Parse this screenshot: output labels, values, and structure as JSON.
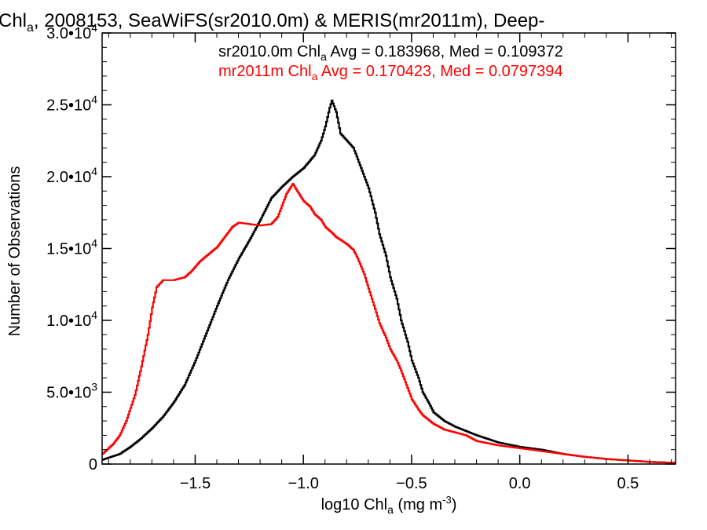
{
  "chart_data": {
    "type": "line",
    "title": {
      "prefix": "Chl",
      "prefix_sub": "a",
      "rest": ", 2008153, SeaWiFS(sr2010.0m) & MERIS(mr2011m), Deep-"
    },
    "xlabel": {
      "prefix": "log10 Chl",
      "sub": "a",
      "mid": " (mg m",
      "sup": "-3",
      "suffix": ")"
    },
    "ylabel": "Number of Observations",
    "xlim": [
      -1.93,
      0.72
    ],
    "ylim": [
      0,
      30000
    ],
    "x_ticks": [
      {
        "value": -1.5,
        "label": "−1.5"
      },
      {
        "value": -1.0,
        "label": "−1.0"
      },
      {
        "value": -0.5,
        "label": "−0.5"
      },
      {
        "value": 0.0,
        "label": "0.0"
      },
      {
        "value": 0.5,
        "label": "0.5"
      }
    ],
    "y_ticks": [
      {
        "value": 0,
        "label": "0",
        "exp": ""
      },
      {
        "value": 5000,
        "label": "5.0•10",
        "exp": "3"
      },
      {
        "value": 10000,
        "label": "1.0•10",
        "exp": "4"
      },
      {
        "value": 15000,
        "label": "1.5•10",
        "exp": "4"
      },
      {
        "value": 20000,
        "label": "2.0•10",
        "exp": "4"
      },
      {
        "value": 25000,
        "label": "2.5•10",
        "exp": "4"
      },
      {
        "value": 30000,
        "label": "3.0•10",
        "exp": "4"
      }
    ],
    "legend": [
      {
        "prefix": "sr2010.0m Chl",
        "sub": "a",
        "text": " Avg = 0.183968, Med = 0.109372",
        "color": "#000000"
      },
      {
        "prefix": "mr2011m Chl",
        "sub": "a",
        "text": " Avg = 0.170423, Med = 0.0797394",
        "color": "#ff0000"
      }
    ],
    "series": [
      {
        "name": "sr2010.0m",
        "color": "#000000",
        "points": [
          [
            -1.93,
            300
          ],
          [
            -1.85,
            700
          ],
          [
            -1.8,
            1200
          ],
          [
            -1.75,
            1800
          ],
          [
            -1.7,
            2500
          ],
          [
            -1.65,
            3300
          ],
          [
            -1.6,
            4300
          ],
          [
            -1.55,
            5500
          ],
          [
            -1.5,
            7200
          ],
          [
            -1.45,
            9100
          ],
          [
            -1.4,
            11000
          ],
          [
            -1.35,
            12800
          ],
          [
            -1.3,
            14300
          ],
          [
            -1.25,
            15600
          ],
          [
            -1.2,
            17000
          ],
          [
            -1.15,
            18500
          ],
          [
            -1.1,
            19300
          ],
          [
            -1.05,
            20000
          ],
          [
            -1.0,
            20600
          ],
          [
            -0.95,
            21500
          ],
          [
            -0.92,
            22500
          ],
          [
            -0.9,
            23500
          ],
          [
            -0.88,
            24800
          ],
          [
            -0.87,
            25300
          ],
          [
            -0.85,
            24500
          ],
          [
            -0.83,
            23000
          ],
          [
            -0.8,
            22500
          ],
          [
            -0.77,
            22000
          ],
          [
            -0.75,
            21200
          ],
          [
            -0.72,
            20000
          ],
          [
            -0.7,
            19200
          ],
          [
            -0.67,
            17500
          ],
          [
            -0.65,
            16000
          ],
          [
            -0.62,
            14500
          ],
          [
            -0.6,
            13000
          ],
          [
            -0.57,
            11500
          ],
          [
            -0.55,
            10000
          ],
          [
            -0.52,
            8500
          ],
          [
            -0.5,
            7200
          ],
          [
            -0.47,
            6000
          ],
          [
            -0.45,
            5000
          ],
          [
            -0.42,
            4200
          ],
          [
            -0.4,
            3600
          ],
          [
            -0.35,
            3000
          ],
          [
            -0.3,
            2600
          ],
          [
            -0.2,
            2000
          ],
          [
            -0.1,
            1500
          ],
          [
            0.0,
            1200
          ],
          [
            0.1,
            1000
          ],
          [
            0.2,
            700
          ],
          [
            0.3,
            500
          ],
          [
            0.4,
            350
          ],
          [
            0.5,
            250
          ],
          [
            0.6,
            150
          ],
          [
            0.72,
            80
          ]
        ]
      },
      {
        "name": "mr2011m",
        "color": "#ff0000",
        "points": [
          [
            -1.93,
            700
          ],
          [
            -1.88,
            1400
          ],
          [
            -1.85,
            2000
          ],
          [
            -1.82,
            3000
          ],
          [
            -1.78,
            4800
          ],
          [
            -1.75,
            6800
          ],
          [
            -1.72,
            9000
          ],
          [
            -1.7,
            10900
          ],
          [
            -1.68,
            12300
          ],
          [
            -1.65,
            12800
          ],
          [
            -1.6,
            12800
          ],
          [
            -1.55,
            13000
          ],
          [
            -1.52,
            13400
          ],
          [
            -1.48,
            14100
          ],
          [
            -1.44,
            14600
          ],
          [
            -1.4,
            15100
          ],
          [
            -1.36,
            15900
          ],
          [
            -1.33,
            16500
          ],
          [
            -1.3,
            16800
          ],
          [
            -1.25,
            16700
          ],
          [
            -1.2,
            16600
          ],
          [
            -1.15,
            16700
          ],
          [
            -1.12,
            17200
          ],
          [
            -1.1,
            18000
          ],
          [
            -1.08,
            18800
          ],
          [
            -1.05,
            19500
          ],
          [
            -1.03,
            19000
          ],
          [
            -1.0,
            18300
          ],
          [
            -0.97,
            17900
          ],
          [
            -0.95,
            17400
          ],
          [
            -0.92,
            17000
          ],
          [
            -0.9,
            16500
          ],
          [
            -0.87,
            16100
          ],
          [
            -0.85,
            15800
          ],
          [
            -0.82,
            15500
          ],
          [
            -0.8,
            15300
          ],
          [
            -0.77,
            14900
          ],
          [
            -0.75,
            14300
          ],
          [
            -0.72,
            13200
          ],
          [
            -0.7,
            12200
          ],
          [
            -0.67,
            10800
          ],
          [
            -0.65,
            9800
          ],
          [
            -0.62,
            8800
          ],
          [
            -0.6,
            8000
          ],
          [
            -0.57,
            7200
          ],
          [
            -0.55,
            6500
          ],
          [
            -0.52,
            5300
          ],
          [
            -0.5,
            4500
          ],
          [
            -0.47,
            3800
          ],
          [
            -0.45,
            3400
          ],
          [
            -0.4,
            2800
          ],
          [
            -0.35,
            2400
          ],
          [
            -0.3,
            2200
          ],
          [
            -0.25,
            2000
          ],
          [
            -0.2,
            1600
          ],
          [
            -0.1,
            1300
          ],
          [
            0.0,
            1100
          ],
          [
            0.1,
            900
          ],
          [
            0.2,
            700
          ],
          [
            0.3,
            500
          ],
          [
            0.4,
            350
          ],
          [
            0.5,
            250
          ],
          [
            0.6,
            150
          ],
          [
            0.72,
            80
          ]
        ]
      }
    ]
  }
}
